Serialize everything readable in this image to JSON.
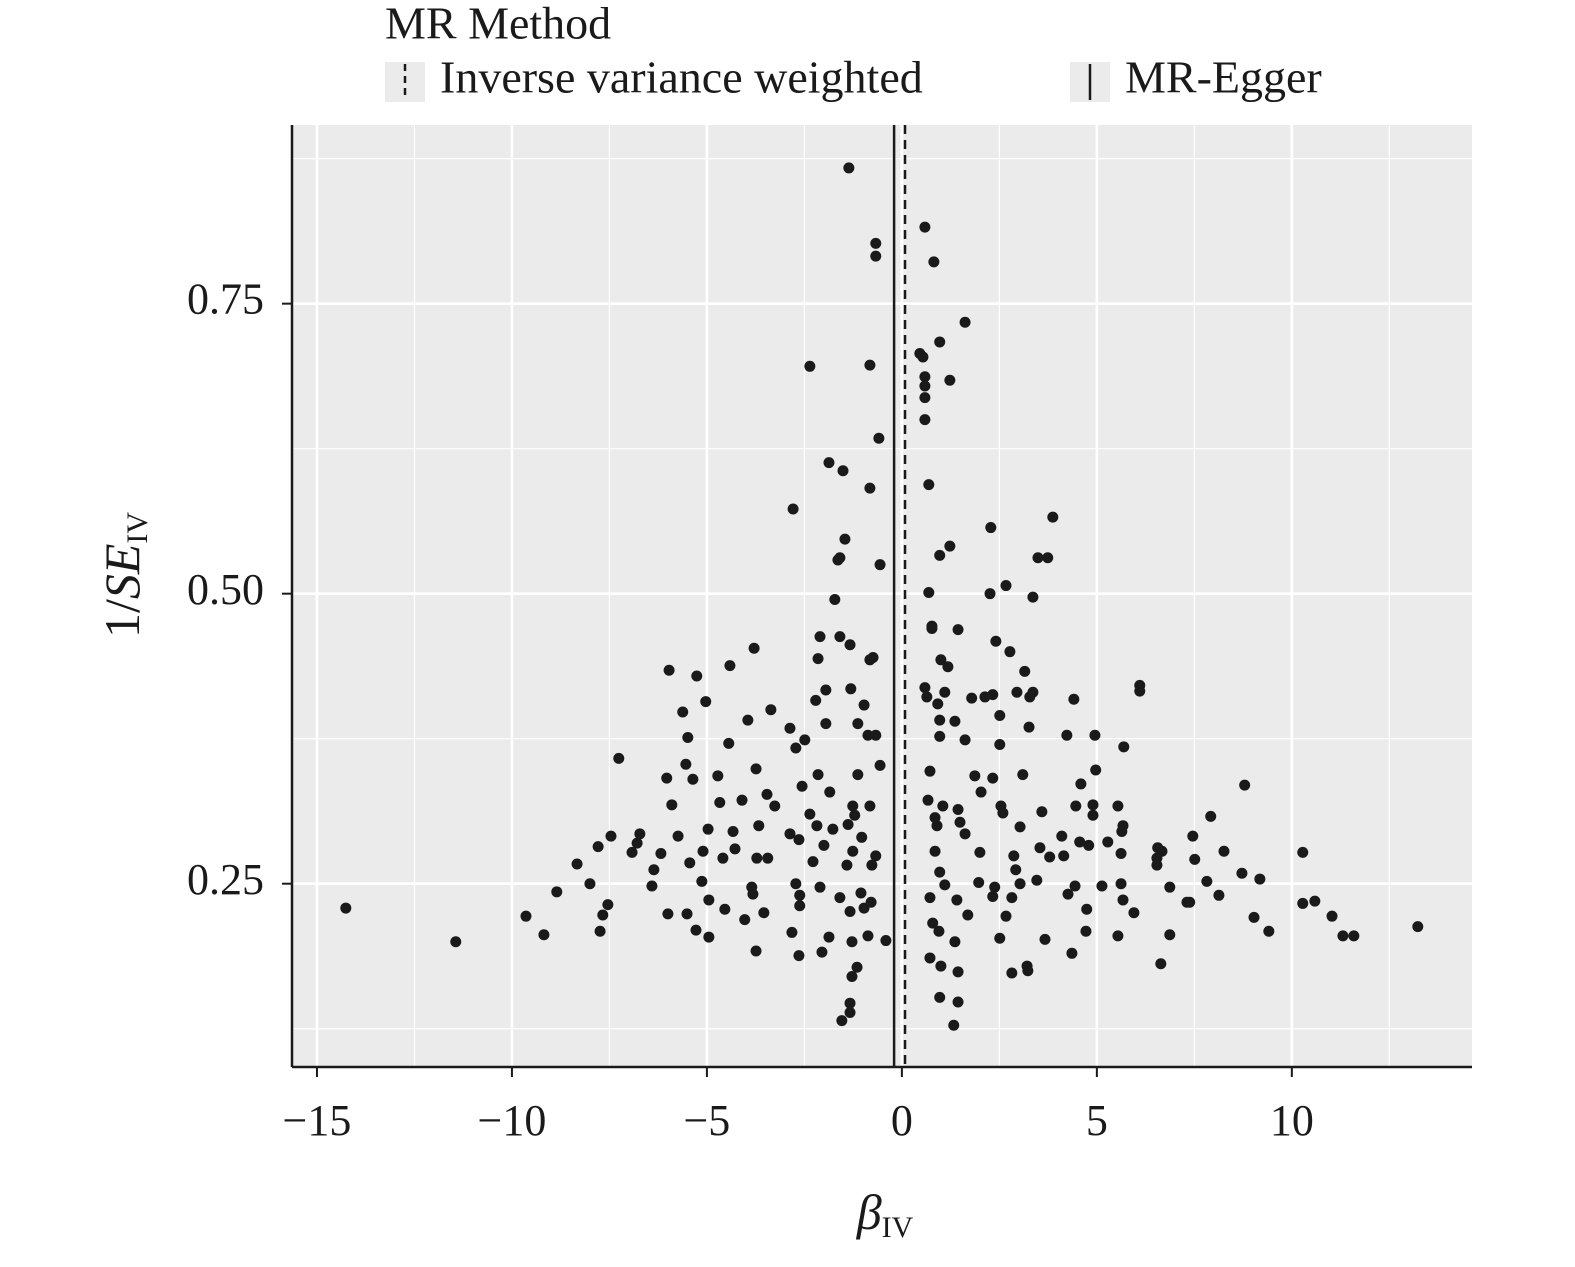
{
  "chart_data": {
    "type": "scatter",
    "legend_title": "MR Method",
    "x_label": {
      "main": "β",
      "sub": "IV"
    },
    "y_label": {
      "prefix": "1/",
      "main": "SE",
      "sub": "IV"
    },
    "xlim": [
      -15.64,
      14.62
    ],
    "ylim": [
      0.092,
      0.904
    ],
    "xticks": [
      {
        "value": -15,
        "label": "−15"
      },
      {
        "value": -10,
        "label": "−10"
      },
      {
        "value": -5,
        "label": "−5"
      },
      0,
      5,
      10
    ],
    "yticks": [
      0.25,
      {
        "value": 0.5,
        "label": "0.50"
      },
      0.75
    ],
    "grid": true,
    "point_color": "#1a1a1a",
    "lines": [
      {
        "name": "Inverse variance weighted",
        "x": 0.08,
        "dashed": true
      },
      {
        "name": "MR-Egger",
        "x": -0.2,
        "dashed": false
      }
    ],
    "x": [
      -1.36,
      0.59,
      -0.67,
      -0.67,
      0.82,
      1.62,
      -2.36,
      -0.82,
      0.97,
      0.46,
      0.54,
      1.23,
      0.59,
      0.59,
      0.59,
      0.59,
      -0.59,
      -1.87,
      -1.51,
      -0.82,
      0.69,
      -2.79,
      3.87,
      2.28,
      -1.46,
      1.23,
      -1.59,
      -1.64,
      -0.56,
      0.97,
      3.49,
      3.74,
      2.67,
      -1.72,
      0.69,
      2.26,
      3.36,
      0.77,
      0.77,
      -2.1,
      -1.59,
      1.44,
      2.41,
      -5.97,
      -5.26,
      -4.41,
      -3.79,
      -2.15,
      -1.33,
      -0.82,
      -0.74,
      1.0,
      1.18,
      2.77,
      3.15,
      6.1,
      6.1,
      0.59,
      0.64,
      1.1,
      1.79,
      2.13,
      2.33,
      2.95,
      3.28,
      3.36,
      4.41,
      -5.03,
      -5.62,
      -3.95,
      -3.36,
      -1.95,
      -2.21,
      -1.31,
      -0.97,
      0.92,
      0.97,
      1.36,
      2.51,
      3.26,
      4.23,
      4.95,
      -5.49,
      -4.44,
      -2.87,
      -2.49,
      -1.95,
      -1.13,
      -0.87,
      -0.67,
      0.97,
      1.62,
      2.51,
      5.69,
      -7.26,
      -5.54,
      -3.74,
      -2.72,
      -2.15,
      -1.13,
      -0.56,
      0.72,
      1.87,
      2.33,
      3.1,
      4.59,
      4.97,
      -6.03,
      -5.36,
      -4.72,
      -3.46,
      -2.56,
      -1.85,
      -1.26,
      0.67,
      1.05,
      1.44,
      2.03,
      2.54,
      3.59,
      4.46,
      4.9,
      5.54,
      8.79,
      -5.9,
      -4.67,
      -4.1,
      -3.26,
      -2.36,
      -1.21,
      -0.82,
      0.85,
      1.49,
      2.59,
      3.03,
      4.1,
      4.9,
      5.67,
      7.92,
      -7.46,
      -6.72,
      -5.74,
      -4.97,
      -4.33,
      -3.67,
      -2.87,
      -2.18,
      -1.77,
      -1.38,
      -1.03,
      0.9,
      1.62,
      3.54,
      4.79,
      5.64,
      7.46,
      6.56,
      -7.79,
      -6.79,
      -6.18,
      -5.1,
      -4.28,
      -3.72,
      -2.64,
      -2.0,
      -1.26,
      -0.67,
      0.85,
      2.0,
      2.87,
      3.79,
      5.28,
      7.51,
      8.26,
      -8.33,
      -6.92,
      -6.36,
      -5.44,
      -4.59,
      -3.44,
      -2.28,
      -1.41,
      -0.77,
      0.97,
      2.92,
      3.46,
      4.15,
      6.54,
      6.54,
      8.72,
      -8.0,
      -6.41,
      -5.13,
      -3.85,
      -2.72,
      -2.1,
      -1.05,
      1.1,
      1.97,
      2.38,
      3.03,
      4.44,
      5.13,
      5.62,
      6.87,
      7.82,
      9.18,
      10.28,
      -8.85,
      -6.0,
      -4.95,
      -3.82,
      -2.62,
      -1.59,
      -0.79,
      0.72,
      1.41,
      2.33,
      2.82,
      4.26,
      5.67,
      8.13,
      7.31,
      -14.26,
      -9.64,
      -7.67,
      -7.54,
      -5.51,
      -4.54,
      -3.54,
      -2.62,
      -1.33,
      -0.97,
      0.79,
      1.69,
      2.67,
      4.74,
      5.95,
      7.38,
      9.03,
      10.28,
      10.59,
      11.03,
      13.23,
      -9.18,
      -7.74,
      -5.28,
      -4.95,
      -4.03,
      -2.82,
      -1.87,
      -0.87,
      -0.41,
      0.95,
      1.36,
      2.51,
      3.67,
      4.72,
      5.54,
      6.87,
      9.41,
      11.31,
      11.59,
      -11.44,
      -3.74,
      -2.64,
      -2.05,
      -1.28,
      4.36,
      6.64,
      1.0,
      3.21,
      2.82,
      -1.28,
      -1.15,
      1.44,
      0.97,
      1.44,
      -1.33,
      -1.33,
      -1.54,
      1.33,
      0.72,
      3.23,
      5.62,
      4.56,
      6.67
    ],
    "y": [
      0.867,
      0.816,
      0.802,
      0.791,
      0.786,
      0.734,
      0.696,
      0.697,
      0.717,
      0.707,
      0.704,
      0.684,
      0.687,
      0.679,
      0.669,
      0.65,
      0.634,
      0.613,
      0.606,
      0.591,
      0.594,
      0.573,
      0.566,
      0.557,
      0.547,
      0.541,
      0.531,
      0.529,
      0.525,
      0.533,
      0.531,
      0.531,
      0.507,
      0.495,
      0.501,
      0.5,
      0.497,
      0.472,
      0.47,
      0.463,
      0.463,
      0.469,
      0.459,
      0.434,
      0.429,
      0.438,
      0.453,
      0.444,
      0.456,
      0.443,
      0.445,
      0.443,
      0.437,
      0.45,
      0.433,
      0.421,
      0.416,
      0.419,
      0.411,
      0.415,
      0.41,
      0.411,
      0.413,
      0.415,
      0.411,
      0.415,
      0.409,
      0.407,
      0.398,
      0.391,
      0.4,
      0.417,
      0.408,
      0.418,
      0.404,
      0.405,
      0.391,
      0.39,
      0.395,
      0.385,
      0.378,
      0.378,
      0.376,
      0.371,
      0.384,
      0.374,
      0.388,
      0.388,
      0.378,
      0.378,
      0.377,
      0.374,
      0.37,
      0.368,
      0.358,
      0.353,
      0.349,
      0.367,
      0.344,
      0.344,
      0.352,
      0.347,
      0.343,
      0.341,
      0.344,
      0.336,
      0.348,
      0.341,
      0.34,
      0.343,
      0.327,
      0.334,
      0.329,
      0.317,
      0.322,
      0.317,
      0.314,
      0.329,
      0.317,
      0.312,
      0.317,
      0.318,
      0.317,
      0.335,
      0.318,
      0.32,
      0.322,
      0.317,
      0.31,
      0.309,
      0.317,
      0.307,
      0.303,
      0.311,
      0.299,
      0.291,
      0.309,
      0.3,
      0.308,
      0.291,
      0.293,
      0.291,
      0.297,
      0.295,
      0.3,
      0.293,
      0.3,
      0.297,
      0.301,
      0.29,
      0.3,
      0.293,
      0.281,
      0.283,
      0.295,
      0.291,
      0.281,
      0.282,
      0.285,
      0.276,
      0.278,
      0.28,
      0.272,
      0.288,
      0.283,
      0.278,
      0.274,
      0.278,
      0.277,
      0.274,
      0.273,
      0.286,
      0.271,
      0.278,
      0.267,
      0.277,
      0.262,
      0.268,
      0.272,
      0.272,
      0.269,
      0.266,
      0.266,
      0.26,
      0.262,
      0.253,
      0.274,
      0.272,
      0.266,
      0.259,
      0.25,
      0.248,
      0.252,
      0.247,
      0.25,
      0.247,
      0.242,
      0.249,
      0.251,
      0.247,
      0.25,
      0.248,
      0.248,
      0.25,
      0.247,
      0.252,
      0.254,
      0.277,
      0.243,
      0.224,
      0.236,
      0.241,
      0.24,
      0.238,
      0.234,
      0.238,
      0.236,
      0.239,
      0.238,
      0.241,
      0.236,
      0.24,
      0.234,
      0.229,
      0.222,
      0.223,
      0.232,
      0.224,
      0.228,
      0.225,
      0.231,
      0.226,
      0.229,
      0.216,
      0.223,
      0.222,
      0.228,
      0.225,
      0.234,
      0.221,
      0.233,
      0.235,
      0.222,
      0.213,
      0.206,
      0.209,
      0.21,
      0.204,
      0.219,
      0.208,
      0.204,
      0.205,
      0.201,
      0.209,
      0.2,
      0.203,
      0.202,
      0.209,
      0.205,
      0.206,
      0.209,
      0.205,
      0.205,
      0.2,
      0.192,
      0.188,
      0.191,
      0.2,
      0.19,
      0.181,
      0.179,
      0.179,
      0.173,
      0.17,
      0.178,
      0.174,
      0.152,
      0.148,
      0.147,
      0.139,
      0.132,
      0.128,
      0.186,
      0.175,
      0.276,
      0.286,
      0.278
    ]
  }
}
